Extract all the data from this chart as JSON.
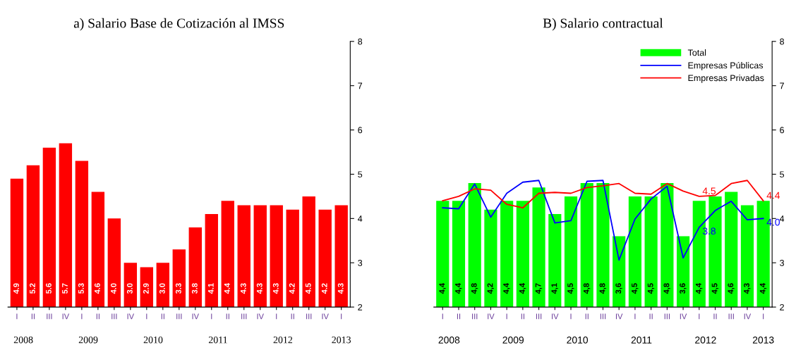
{
  "chart_data": [
    {
      "type": "bar",
      "title": "a) Salario Base de Cotización al IMSS",
      "categories": [
        "I",
        "II",
        "III",
        "IV",
        "I",
        "II",
        "III",
        "IV",
        "I",
        "II",
        "III",
        "IV",
        "I",
        "II",
        "III",
        "IV",
        "I",
        "II",
        "III",
        "IV",
        "I"
      ],
      "values": [
        4.9,
        5.2,
        5.6,
        5.7,
        5.3,
        4.6,
        4.0,
        3.0,
        2.9,
        3.0,
        3.3,
        3.8,
        4.1,
        4.4,
        4.3,
        4.3,
        4.3,
        4.2,
        4.5,
        4.2,
        4.3
      ],
      "value_labels": [
        "4.9",
        "5.2",
        "5.6",
        "5.7",
        "5.3",
        "4.6",
        "4.0",
        "3.0",
        "2.9",
        "3.0",
        "3.3",
        "3.8",
        "4.1",
        "4.4",
        "4.3",
        "4.3",
        "4.3",
        "4.2",
        "4.5",
        "4.2",
        "4.3"
      ],
      "color": "#ff0000",
      "ylim": [
        2,
        8
      ],
      "yticks": [
        2,
        3,
        4,
        5,
        6,
        7,
        8
      ],
      "grid": false,
      "legend": false,
      "annotations": [
        "2008",
        "2009",
        "2010",
        "2011",
        "2012",
        "2013"
      ]
    },
    {
      "type": "bar",
      "title": "B) Salario contractual",
      "categories": [
        "I",
        "II",
        "III",
        "IV",
        "I",
        "II",
        "III",
        "IV",
        "I",
        "II",
        "III",
        "IV",
        "I",
        "II",
        "III",
        "IV",
        "I",
        "II",
        "III",
        "IV",
        "I"
      ],
      "series": [
        {
          "name": "Total",
          "type": "bar",
          "color": "#00ff00",
          "values": [
            4.4,
            4.4,
            4.8,
            4.2,
            4.4,
            4.4,
            4.7,
            4.1,
            4.5,
            4.8,
            4.8,
            3.6,
            4.5,
            4.5,
            4.8,
            3.6,
            4.4,
            4.5,
            4.6,
            4.3,
            4.4
          ],
          "value_labels": [
            "4,4",
            "4,4",
            "4,8",
            "4,2",
            "4,4",
            "4,4",
            "4,7",
            "4,1",
            "4,5",
            "4,8",
            "4,8",
            "3,6",
            "4,5",
            "4,5",
            "4,8",
            "3,6",
            "4,4",
            "4,5",
            "4,6",
            "4,3",
            "4,4"
          ]
        },
        {
          "name": "Empresas Públicas",
          "type": "line",
          "color": "#0000ff",
          "values": [
            4.24,
            4.22,
            4.78,
            4.03,
            4.57,
            4.82,
            4.86,
            3.9,
            3.95,
            4.84,
            4.86,
            3.06,
            3.99,
            4.44,
            4.73,
            3.11,
            3.8,
            4.18,
            4.39,
            3.97,
            4.0
          ],
          "value_labels": [
            null,
            null,
            null,
            null,
            null,
            null,
            null,
            null,
            null,
            null,
            null,
            null,
            null,
            null,
            null,
            null,
            "3.8",
            null,
            null,
            null,
            "4.0"
          ]
        },
        {
          "name": "Empresas Privadas",
          "type": "line",
          "color": "#ff0000",
          "values": [
            4.4,
            4.5,
            4.67,
            4.64,
            4.32,
            4.24,
            4.57,
            4.59,
            4.57,
            4.7,
            4.74,
            4.79,
            4.57,
            4.55,
            4.79,
            4.62,
            4.5,
            4.52,
            4.79,
            4.86,
            4.4
          ],
          "value_labels": [
            null,
            null,
            null,
            null,
            null,
            null,
            null,
            null,
            null,
            null,
            null,
            null,
            null,
            null,
            null,
            null,
            "4.5",
            null,
            null,
            null,
            "4.4"
          ]
        }
      ],
      "ylim": [
        2,
        8
      ],
      "yticks": [
        2,
        3,
        4,
        5,
        6,
        7,
        8
      ],
      "grid": false,
      "legend": "top right",
      "annotations": [
        "2008",
        "2009",
        "2010",
        "2011",
        "2012",
        "2013"
      ]
    }
  ]
}
